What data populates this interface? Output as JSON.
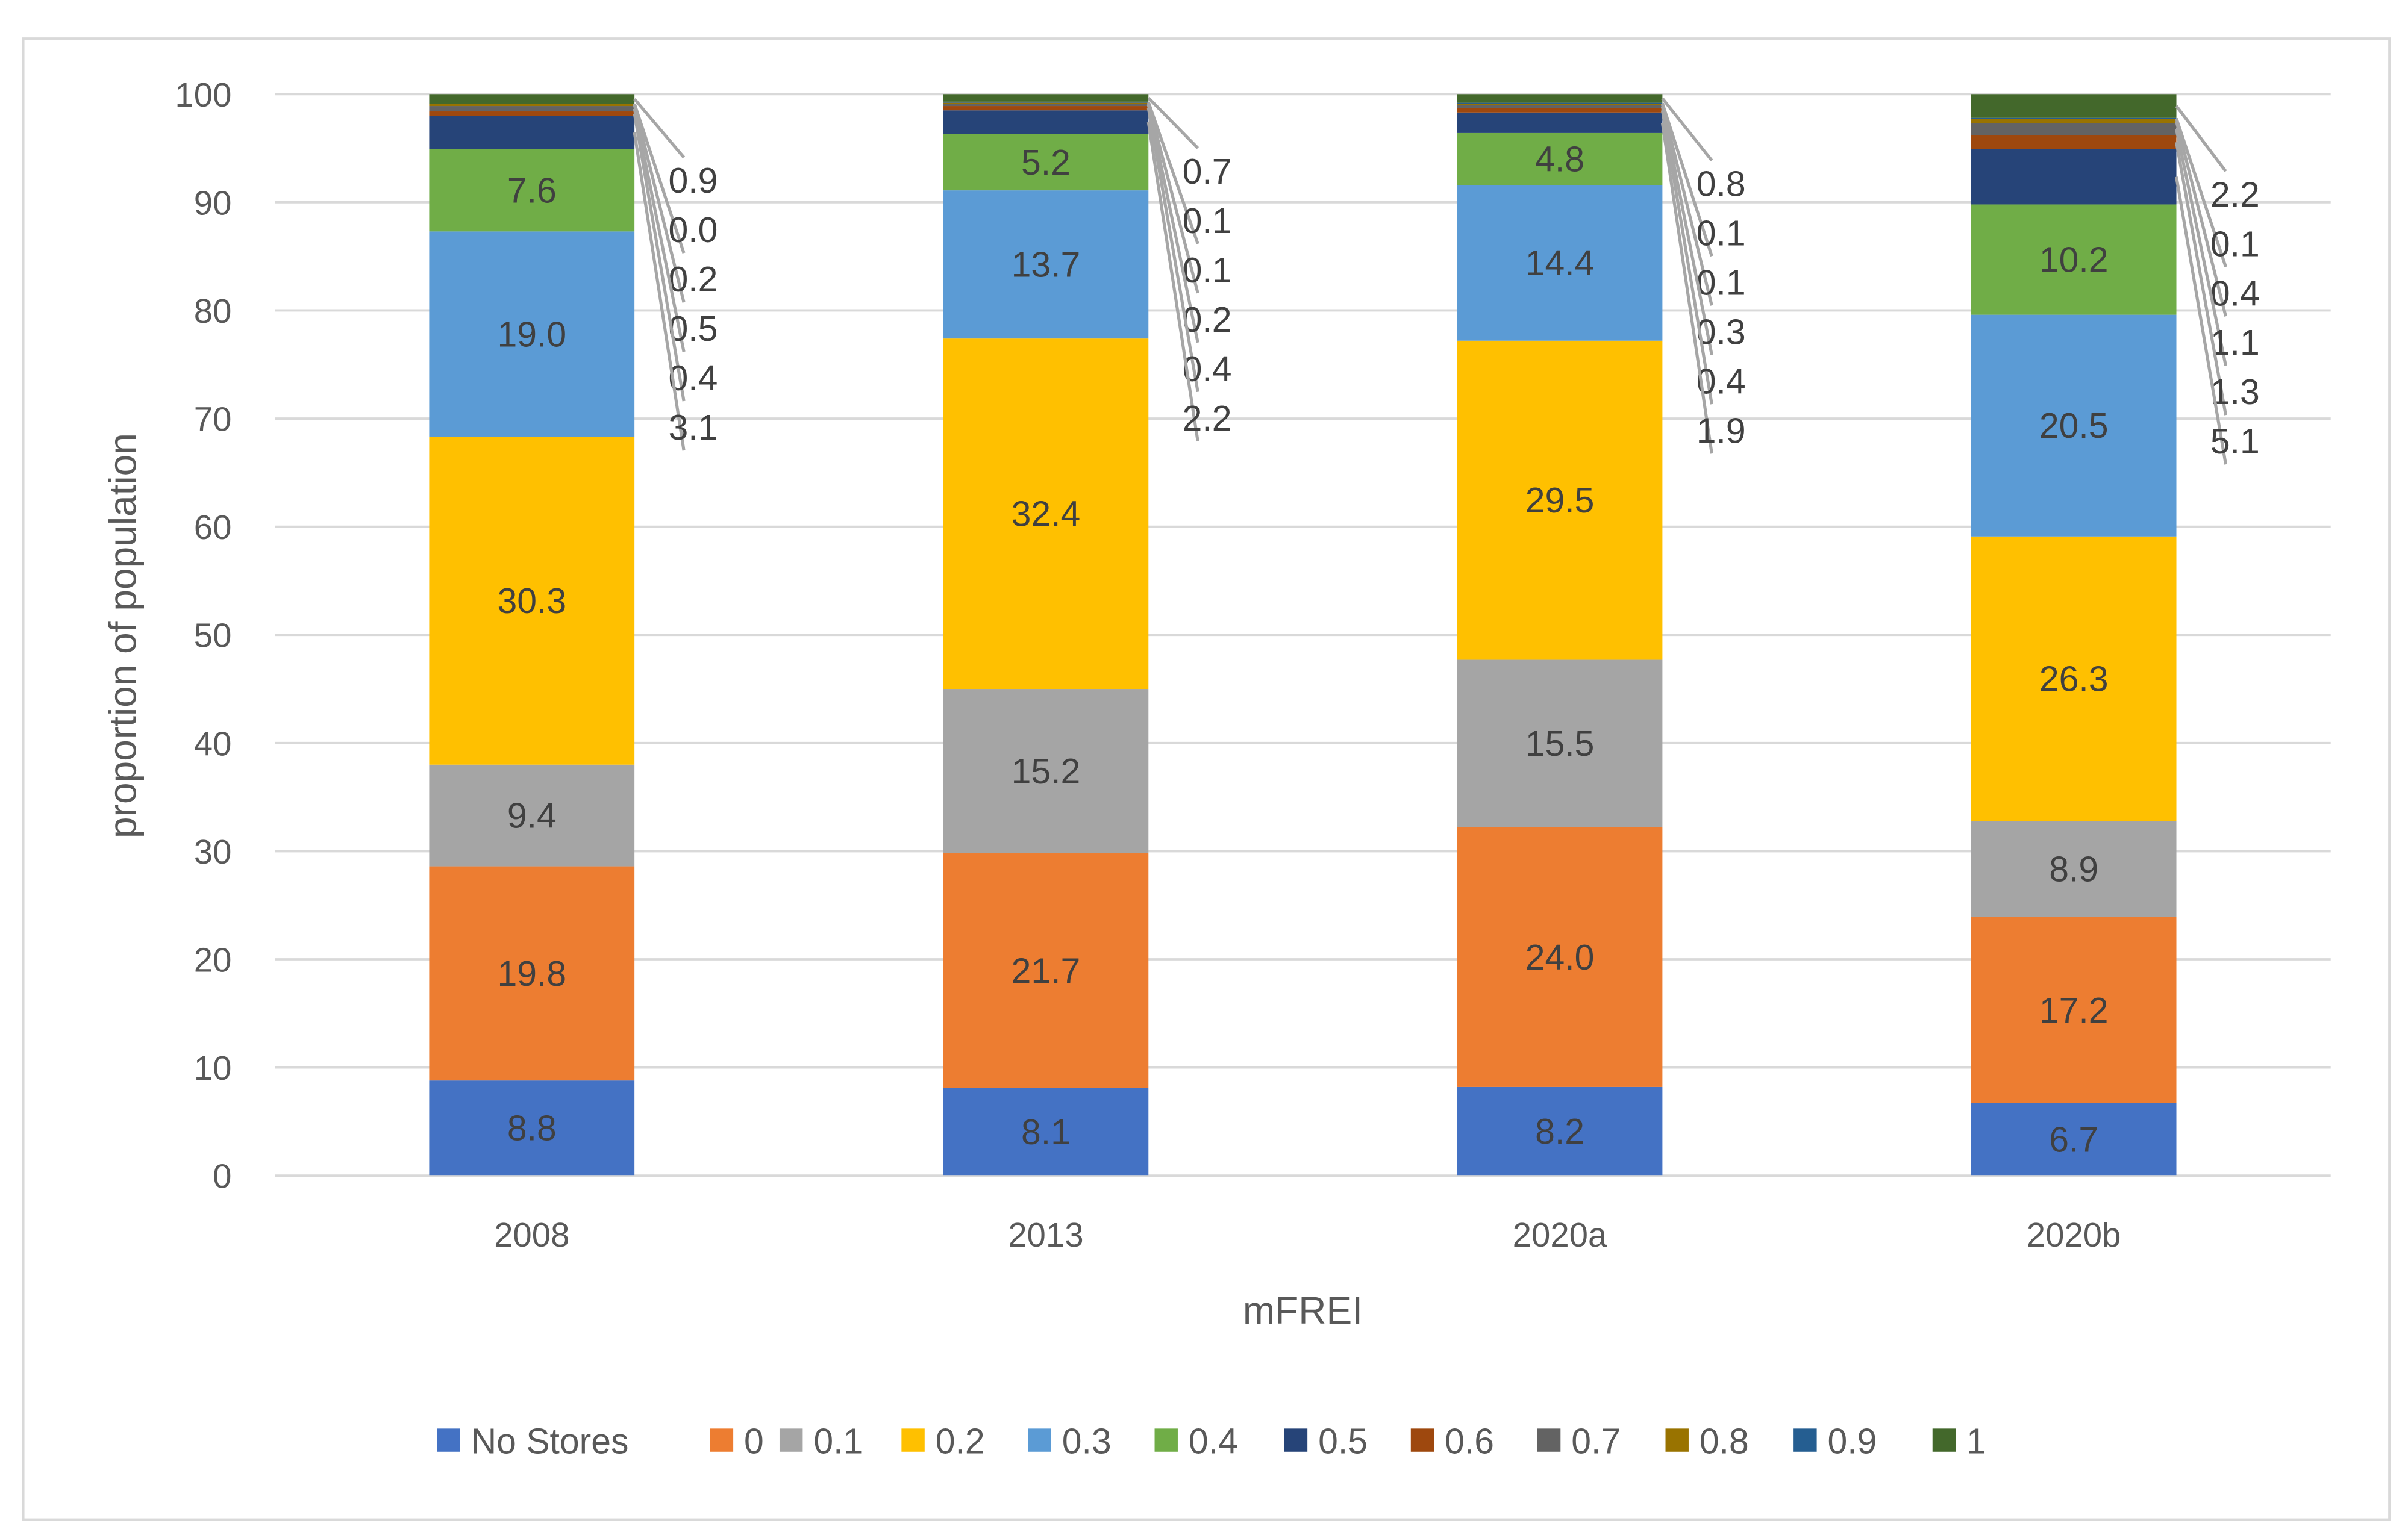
{
  "chart_data": {
    "type": "bar",
    "stacked": true,
    "title": "",
    "xlabel": "mFREI",
    "ylabel": "proportion of population",
    "ylim": [
      0,
      100
    ],
    "yticks": [
      0,
      10,
      20,
      30,
      40,
      50,
      60,
      70,
      80,
      90,
      100
    ],
    "grid": true,
    "legend_position": "bottom",
    "categories": [
      "2008",
      "2013",
      "2020a",
      "2020b"
    ],
    "series": [
      {
        "name": "No Stores",
        "color": "#4472C4",
        "values": [
          8.8,
          8.1,
          8.2,
          6.7
        ]
      },
      {
        "name": "0",
        "color": "#ED7D31",
        "values": [
          19.8,
          21.7,
          24.0,
          17.2
        ]
      },
      {
        "name": "0.1",
        "color": "#A5A5A5",
        "values": [
          9.4,
          15.2,
          15.5,
          8.9
        ]
      },
      {
        "name": "0.2",
        "color": "#FFC000",
        "values": [
          30.3,
          32.4,
          29.5,
          26.3
        ]
      },
      {
        "name": "0.3",
        "color": "#5B9BD5",
        "values": [
          19.0,
          13.7,
          14.4,
          20.5
        ]
      },
      {
        "name": "0.4",
        "color": "#70AD47",
        "values": [
          7.6,
          5.2,
          4.8,
          10.2
        ]
      },
      {
        "name": "0.5",
        "color": "#264478",
        "values": [
          3.1,
          2.2,
          1.9,
          5.1
        ]
      },
      {
        "name": "0.6",
        "color": "#9E480E",
        "values": [
          0.4,
          0.4,
          0.4,
          1.3
        ]
      },
      {
        "name": "0.7",
        "color": "#636363",
        "values": [
          0.5,
          0.2,
          0.3,
          1.1
        ]
      },
      {
        "name": "0.8",
        "color": "#997300",
        "values": [
          0.2,
          0.1,
          0.1,
          0.4
        ]
      },
      {
        "name": "0.9",
        "color": "#255E91",
        "values": [
          0.0,
          0.1,
          0.1,
          0.1
        ]
      },
      {
        "name": "1",
        "color": "#43682B",
        "values": [
          0.9,
          0.7,
          0.8,
          2.2
        ]
      }
    ]
  }
}
